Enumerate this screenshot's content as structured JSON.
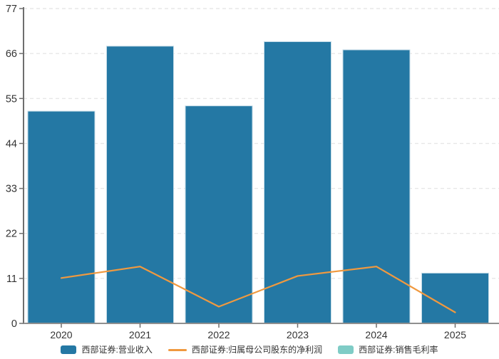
{
  "chart_data": {
    "type": "combo",
    "title": "",
    "categories": [
      "2020",
      "2021",
      "2022",
      "2023",
      "2024",
      "2025"
    ],
    "series": [
      {
        "name": "西部证券:营业收入",
        "type": "bar",
        "color": "#2478a4",
        "values": [
          51.9,
          67.8,
          53.2,
          68.9,
          66.9,
          12.3
        ]
      },
      {
        "name": "西部证券:归属母公司股东的净利润",
        "type": "line",
        "color": "#f0993f",
        "values": [
          11.1,
          13.9,
          4.1,
          11.6,
          13.9,
          2.7
        ]
      },
      {
        "name": "西部证券:销售毛利率",
        "type": "hidden",
        "color": "#7fccc6",
        "values": []
      }
    ],
    "xlabel": "",
    "ylabel": "",
    "ylim": [
      0,
      77
    ],
    "yticks": [
      0,
      11,
      22,
      33,
      44,
      55,
      66,
      77
    ],
    "grid": "horizontal-dashed",
    "legend_position": "bottom"
  },
  "style": {
    "grid_color": "#e7e7e7",
    "axis_color": "#8f8f8f",
    "tick_color": "#6e6e6e",
    "label_color": "#333333",
    "bar_stroke": "#c3dbe7"
  }
}
